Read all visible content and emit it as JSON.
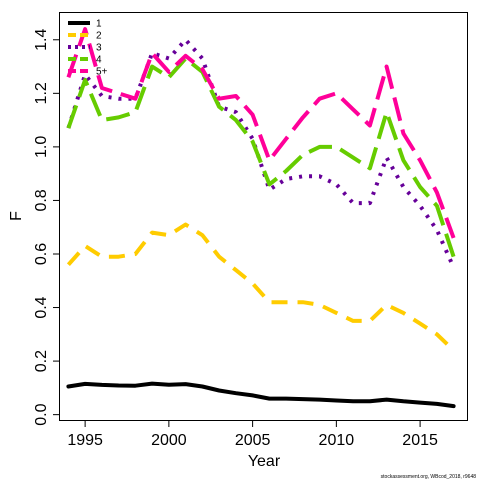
{
  "chart_data": {
    "type": "line",
    "xlabel": "Year",
    "ylabel": "F",
    "xlim": [
      1993.5,
      2017.8
    ],
    "ylim": [
      -0.02,
      1.5
    ],
    "xticks": [
      1995,
      2000,
      2005,
      2010,
      2015
    ],
    "yticks": [
      0.0,
      0.2,
      0.4,
      0.6,
      0.8,
      1.0,
      1.2,
      1.4
    ],
    "ytick_labels": [
      "0.0",
      "0.2",
      "0.4",
      "0.6",
      "0.8",
      "1.0",
      "1.2",
      "1.4"
    ],
    "grid": false,
    "legend_position": "top-left",
    "x": [
      1994,
      1995,
      1996,
      1997,
      1998,
      1999,
      2000,
      2001,
      2002,
      2003,
      2004,
      2005,
      2006,
      2007,
      2008,
      2009,
      2010,
      2011,
      2012,
      2013,
      2014,
      2015,
      2016,
      2017
    ],
    "series": [
      {
        "name": "1",
        "color": "#000000",
        "dash": "solid",
        "values": [
          0.105,
          0.115,
          0.111,
          0.109,
          0.108,
          0.116,
          0.112,
          0.114,
          0.105,
          0.09,
          0.08,
          0.072,
          0.06,
          0.06,
          0.058,
          0.056,
          0.053,
          0.05,
          0.05,
          0.056,
          0.05,
          0.045,
          0.04,
          0.032
        ]
      },
      {
        "name": "2",
        "color": "#FFCC00",
        "dash": "dash",
        "values": [
          0.56,
          0.63,
          0.59,
          0.59,
          0.6,
          0.68,
          0.67,
          0.71,
          0.67,
          0.59,
          0.54,
          0.49,
          0.42,
          0.42,
          0.42,
          0.41,
          0.38,
          0.35,
          0.35,
          0.41,
          0.38,
          0.34,
          0.3,
          0.24
        ]
      },
      {
        "name": "3",
        "color": "#660099",
        "dash": "dot",
        "values": [
          1.07,
          1.27,
          1.19,
          1.18,
          1.18,
          1.35,
          1.33,
          1.4,
          1.33,
          1.15,
          1.13,
          1.03,
          0.84,
          0.88,
          0.89,
          0.89,
          0.86,
          0.79,
          0.79,
          0.96,
          0.85,
          0.78,
          0.69,
          0.55
        ]
      },
      {
        "name": "4",
        "color": "#66CC00",
        "dash": "longdash",
        "values": [
          1.07,
          1.25,
          1.1,
          1.11,
          1.13,
          1.3,
          1.26,
          1.33,
          1.28,
          1.15,
          1.1,
          1.02,
          0.86,
          0.91,
          0.97,
          1.0,
          1.0,
          0.96,
          0.92,
          1.13,
          0.95,
          0.85,
          0.78,
          0.59
        ]
      },
      {
        "name": "5+",
        "color": "#FF0099",
        "dash": "longdash",
        "values": [
          1.26,
          1.44,
          1.22,
          1.2,
          1.18,
          1.35,
          1.28,
          1.34,
          1.29,
          1.18,
          1.19,
          1.12,
          0.95,
          1.03,
          1.11,
          1.18,
          1.2,
          1.14,
          1.08,
          1.3,
          1.05,
          0.95,
          0.83,
          0.66
        ]
      }
    ],
    "footer": "stockassessment.org, WBcod_2018, r9648"
  }
}
